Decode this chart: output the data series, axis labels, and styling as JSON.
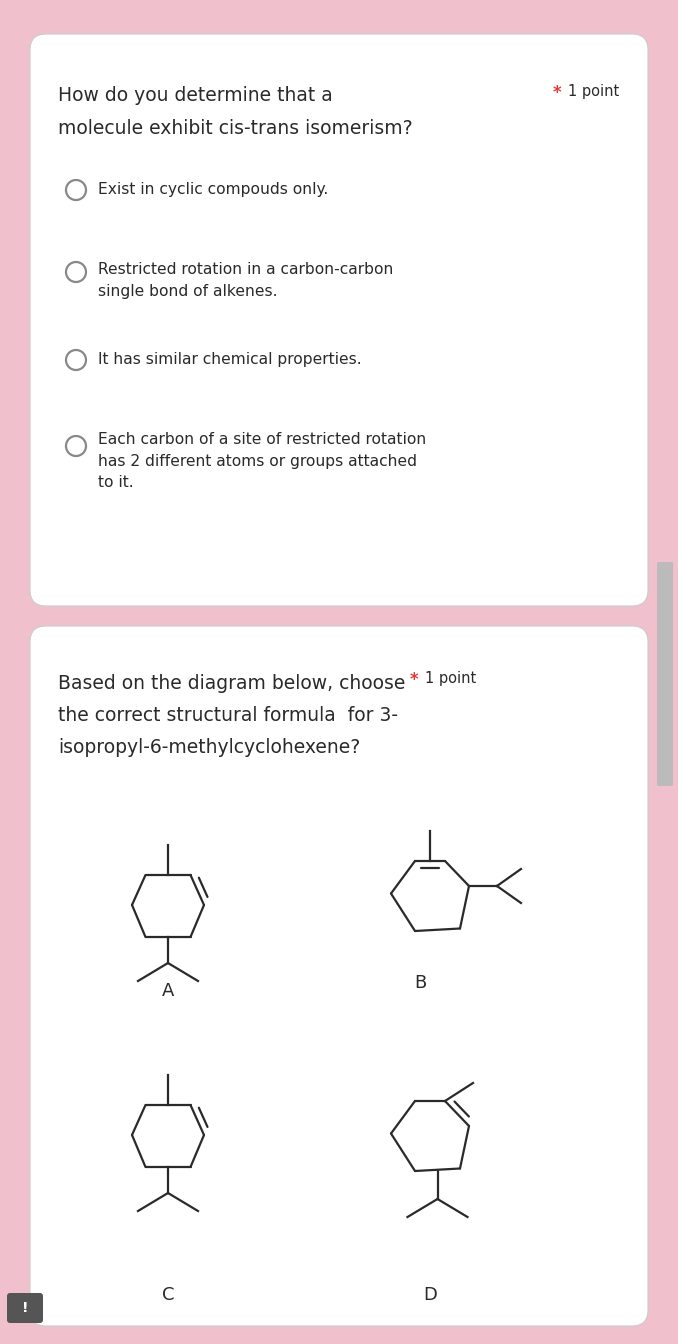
{
  "bg_color": "#f0c0cc",
  "card_color": "#ffffff",
  "card_edge_color": "#cccccc",
  "text_color": "#2a2a2a",
  "radio_color": "#888888",
  "red_star_color": "#e53935",
  "q1_title_line1": "How do you determine that a",
  "q1_title_line2": "molecule exhibit cis-trans isomerism?",
  "q1_point": "1 point",
  "q1_options": [
    "Exist in cyclic compouds only.",
    "Restricted rotation in a carbon-carbon\nsingle bond of alkenes.",
    "It has similar chemical properties.",
    "Each carbon of a site of restricted rotation\nhas 2 different atoms or groups attached\nto it."
  ],
  "q2_title_line1": "Based on the diagram below, choose",
  "q2_title_line2": "the correct structural formula  for 3-",
  "q2_title_line3": "isopropyl-6-methylcyclohexene?",
  "q2_point": "1 point",
  "mol_color": "#2a2a2a",
  "lw_mol": 1.6,
  "answer_labels": [
    "A",
    "B",
    "C",
    "D"
  ],
  "scroll_color": "#bbbbbb",
  "chat_color": "#555555"
}
